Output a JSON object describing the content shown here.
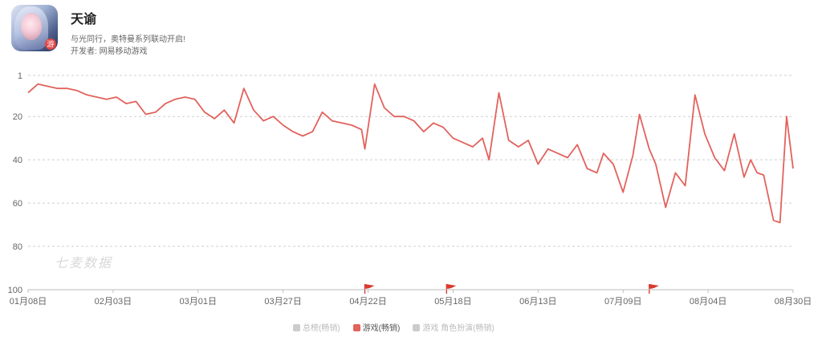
{
  "app": {
    "title": "天谕",
    "subtitle": "与光同行，奥特曼系列联动开启!",
    "developer_label": "开发者:",
    "developer": "网易移动游戏",
    "icon_badge": "游"
  },
  "watermark": "七麦数据",
  "colors": {
    "line": "#e2625c",
    "grid": "#cfcfcf",
    "axis": "#bbbbbb",
    "tick": "#666666",
    "flag": "#d93a2f"
  },
  "legend": [
    {
      "label": "总榜(畅销)",
      "color": "#cccccc",
      "active": false
    },
    {
      "label": "游戏(畅销)",
      "color": "#e2625c",
      "active": true
    },
    {
      "label": "游戏 角色扮演(畅销)",
      "color": "#cccccc",
      "active": false
    }
  ],
  "chart_data": {
    "type": "line",
    "title": "",
    "xlabel": "",
    "ylabel": "",
    "y_inverted": true,
    "ylim": [
      1,
      100
    ],
    "yticks": [
      "1",
      "20",
      "40",
      "60",
      "80",
      "100"
    ],
    "xlim": [
      "01月08日",
      "08月30日"
    ],
    "xticks": [
      "01月08日",
      "02月03日",
      "03月01日",
      "03月27日",
      "04月22日",
      "05月18日",
      "06月13日",
      "07月09日",
      "08月04日",
      "08月30日"
    ],
    "grid": true,
    "event_flags": [
      "04月21日",
      "05月16日",
      "07月17日"
    ],
    "series": [
      {
        "name": "游戏(畅销)",
        "x": [
          "01月08日",
          "01月11日",
          "01月14日",
          "01月17日",
          "01月20日",
          "01月23日",
          "01月26日",
          "01月29日",
          "02月01日",
          "02月04日",
          "02月07日",
          "02月10日",
          "02月13日",
          "02月16日",
          "02月19日",
          "02月22日",
          "02月25日",
          "02月28日",
          "03月03日",
          "03月06日",
          "03月09日",
          "03月12日",
          "03月15日",
          "03月18日",
          "03月21日",
          "03月24日",
          "03月27日",
          "03月30日",
          "04月02日",
          "04月05日",
          "04月08日",
          "04月11日",
          "04月14日",
          "04月17日",
          "04月20日",
          "04月21日",
          "04月24日",
          "04月27日",
          "04月30日",
          "05月03日",
          "05月06日",
          "05月09日",
          "05月12日",
          "05月15日",
          "05月18日",
          "05月21日",
          "05月24日",
          "05月27日",
          "05月29日",
          "06月01日",
          "06月04日",
          "06月07日",
          "06月10日",
          "06月13日",
          "06月16日",
          "06月19日",
          "06月22日",
          "06月25日",
          "06月28日",
          "07月01日",
          "07月03日",
          "07月06日",
          "07月09日",
          "07月12日",
          "07月14日",
          "07月17日",
          "07月19日",
          "07月22日",
          "07月25日",
          "07月28日",
          "07月31日",
          "08月03日",
          "08月06日",
          "08月09日",
          "08月12日",
          "08月15日",
          "08月17日",
          "08月19日",
          "08月21日",
          "08月24日",
          "08月26日",
          "08月28日",
          "08月30日"
        ],
        "values": [
          9,
          5,
          6,
          7,
          7,
          8,
          10,
          11,
          12,
          11,
          14,
          13,
          19,
          18,
          14,
          12,
          11,
          12,
          18,
          21,
          17,
          23,
          7,
          17,
          22,
          20,
          24,
          27,
          29,
          27,
          18,
          22,
          23,
          24,
          26,
          35,
          5,
          16,
          20,
          20,
          22,
          27,
          23,
          25,
          30,
          32,
          34,
          30,
          40,
          9,
          31,
          34,
          31,
          42,
          35,
          37,
          39,
          33,
          44,
          46,
          37,
          42,
          55,
          38,
          19,
          35,
          42,
          62,
          46,
          52,
          10,
          28,
          39,
          45,
          28,
          48,
          40,
          46,
          47,
          68,
          69,
          20,
          44
        ]
      }
    ]
  }
}
